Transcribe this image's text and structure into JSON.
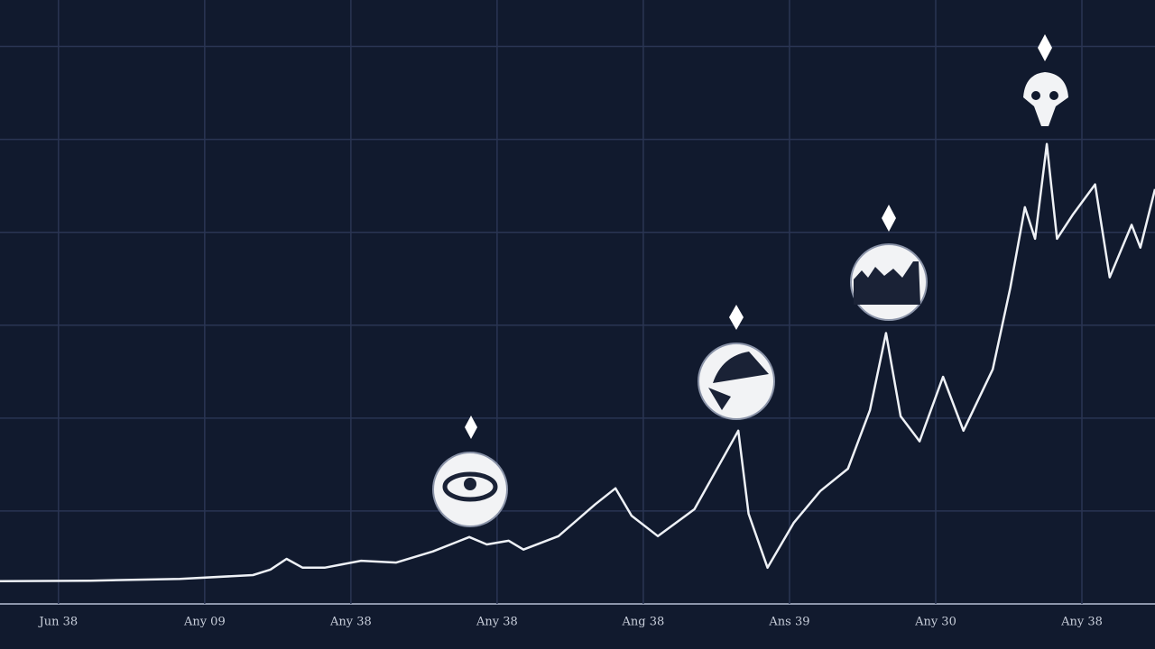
{
  "chart_data": {
    "type": "line",
    "x": [
      -0.4,
      0.22,
      0.83,
      1.33,
      1.45,
      1.56,
      1.67,
      1.82,
      2.07,
      2.31,
      2.56,
      2.81,
      2.93,
      3.08,
      3.18,
      3.42,
      3.67,
      3.81,
      3.92,
      4.1,
      4.35,
      4.54,
      4.65,
      4.72,
      4.85,
      5.03,
      5.21,
      5.4,
      5.55,
      5.66,
      5.76,
      5.89,
      6.05,
      6.19,
      6.39,
      6.51,
      6.61,
      6.68,
      6.76,
      6.83,
      6.94,
      7.09,
      7.19,
      7.34,
      7.4,
      7.5
    ],
    "series": [
      {
        "color": "#eef1f6",
        "values": [
          4.9,
          5.0,
          5.4,
          6.2,
          7.4,
          9.7,
          7.8,
          7.8,
          9.3,
          8.9,
          11.3,
          14.4,
          12.8,
          13.6,
          11.7,
          14.6,
          21.4,
          24.9,
          19.0,
          14.6,
          20.4,
          31.1,
          37.3,
          19.4,
          7.8,
          17.5,
          24.3,
          29.1,
          41.7,
          58.3,
          40.4,
          35.0,
          48.9,
          37.3,
          50.5,
          68.0,
          85.4,
          78.6,
          99.0,
          78.6,
          83.9,
          90.3,
          70.3,
          81.6,
          76.7,
          89.3
        ]
      }
    ],
    "xlim": [
      -0.4,
      7.5
    ],
    "xticks": [
      {
        "value": 0,
        "label": "Jun 38"
      },
      {
        "value": 1,
        "label": "Any 09"
      },
      {
        "value": 2,
        "label": "Any 38"
      },
      {
        "value": 3,
        "label": "Any 38"
      },
      {
        "value": 4,
        "label": "Ang 38"
      },
      {
        "value": 5,
        "label": "Ans 39"
      },
      {
        "value": 6,
        "label": "Any 30"
      },
      {
        "value": 7,
        "label": "Any 38"
      }
    ],
    "ylim": [
      0,
      130
    ],
    "yticks": [
      20,
      40,
      60,
      80,
      100,
      120
    ],
    "grid": true
  }
}
